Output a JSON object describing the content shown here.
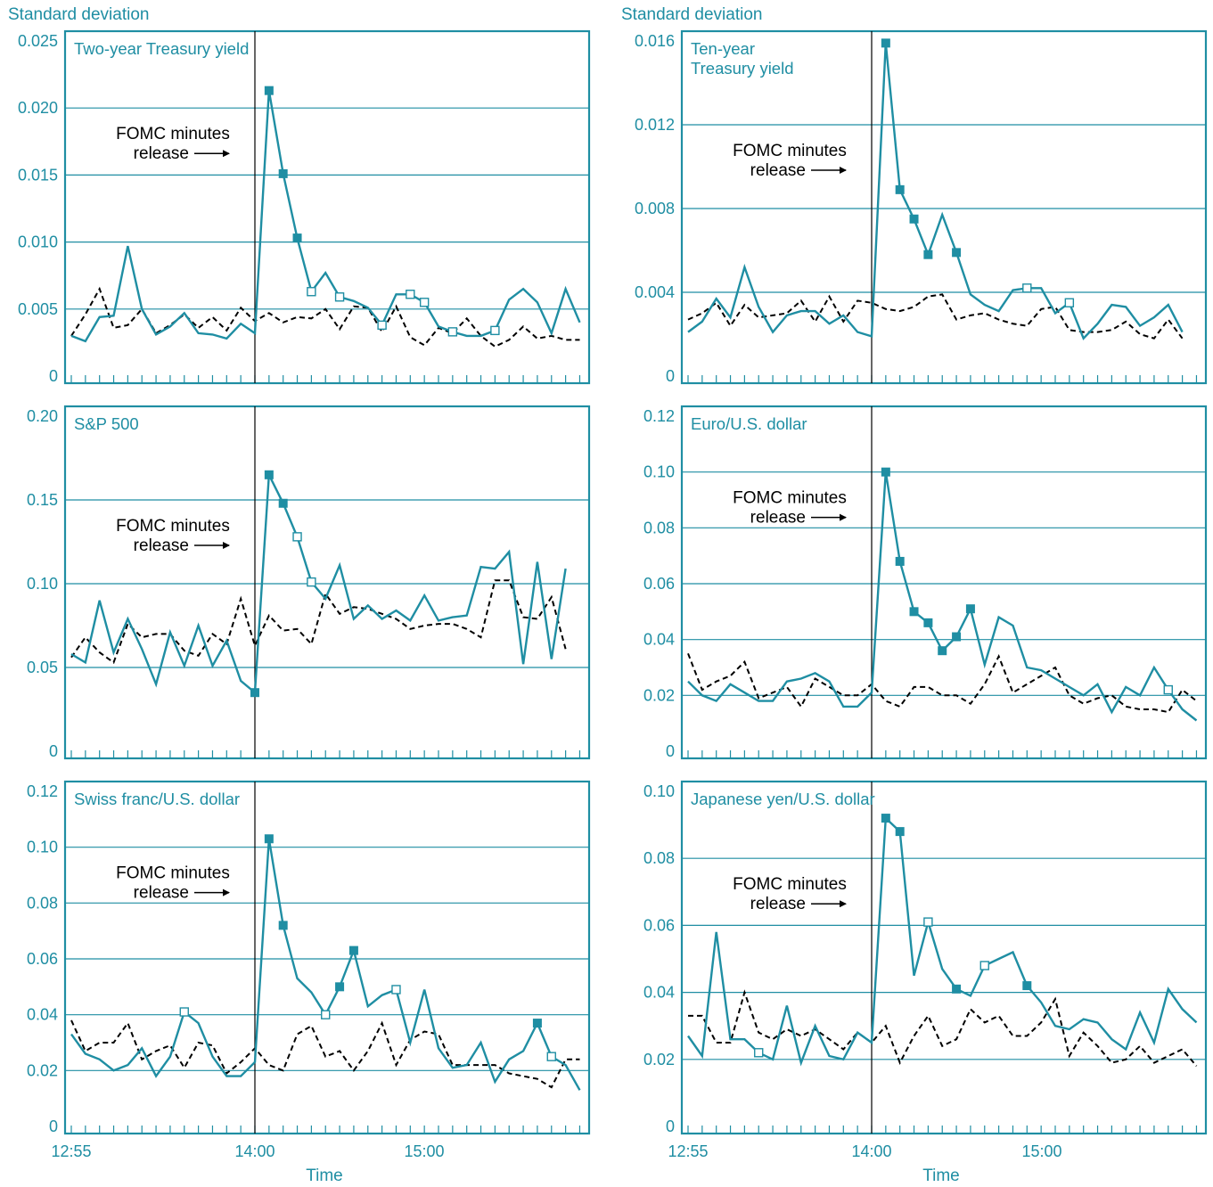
{
  "y_axis_caption": "Standard deviation",
  "x_axis_label": "Time",
  "colors": {
    "accent": "#1f8ea3",
    "frame": "#1f8ea3",
    "grid": "#1f8ea3",
    "comparison": "#000000",
    "event_line": "#000000"
  },
  "chart_data": [
    {
      "type": "line",
      "title_lines": [
        "Two-year Treasury yield"
      ],
      "annotation_lines": [
        "FOMC minutes",
        "release"
      ],
      "ylim": [
        0,
        0.025
      ],
      "y_ticks": [
        0,
        0.005,
        0.01,
        0.015,
        0.02,
        0.025
      ],
      "y_tick_labels": [
        "0",
        "0.005",
        "0.010",
        "0.015",
        "0.020",
        "0.025"
      ],
      "x_tick_labels": [
        "12:55",
        "14:00",
        "15:00"
      ],
      "grid": true,
      "event_index": 13,
      "series": [
        {
          "style": "solid",
          "values": [
            0.003,
            0.0026,
            0.0044,
            0.0045,
            0.0097,
            0.005,
            0.0031,
            0.0037,
            0.0047,
            0.0032,
            0.0031,
            0.0028,
            0.0039,
            0.0032,
            0.0213,
            0.0151,
            0.0103,
            0.0063,
            0.0077,
            0.0059,
            0.0056,
            0.0051,
            0.0038,
            0.0061,
            0.0061,
            0.0055,
            0.0037,
            0.0033,
            0.003,
            0.003,
            0.0034,
            0.0057,
            0.0065,
            0.0055,
            0.0032,
            0.0065,
            0.004
          ],
          "filled_markers": [
            14,
            15,
            16
          ],
          "open_markers": [
            17,
            19,
            22,
            24,
            25,
            27,
            30
          ]
        },
        {
          "style": "dashed",
          "values": [
            0.003,
            0.0046,
            0.0065,
            0.0036,
            0.0038,
            0.005,
            0.0032,
            0.0038,
            0.0046,
            0.0036,
            0.0044,
            0.0034,
            0.0051,
            0.0041,
            0.0047,
            0.004,
            0.0044,
            0.0043,
            0.005,
            0.0035,
            0.0052,
            0.0051,
            0.0033,
            0.0052,
            0.0029,
            0.0023,
            0.0036,
            0.0032,
            0.0043,
            0.003,
            0.0022,
            0.0027,
            0.0037,
            0.0028,
            0.003,
            0.0027,
            0.0027
          ]
        }
      ]
    },
    {
      "type": "line",
      "title_lines": [
        "Ten-year",
        "Treasury yield"
      ],
      "annotation_lines": [
        "FOMC minutes",
        "release"
      ],
      "ylim": [
        0,
        0.016
      ],
      "y_ticks": [
        0,
        0.004,
        0.008,
        0.012,
        0.016
      ],
      "y_tick_labels": [
        "0",
        "0.004",
        "0.008",
        "0.012",
        "0.016"
      ],
      "x_tick_labels": [
        "12:55",
        "14:00",
        "15:00"
      ],
      "grid": true,
      "event_index": 13,
      "series": [
        {
          "style": "solid",
          "values": [
            0.0021,
            0.0026,
            0.0037,
            0.0028,
            0.0052,
            0.0033,
            0.0021,
            0.0029,
            0.0031,
            0.0031,
            0.0025,
            0.0029,
            0.0021,
            0.0019,
            0.0159,
            0.0089,
            0.0075,
            0.0058,
            0.0077,
            0.0059,
            0.0039,
            0.0034,
            0.0031,
            0.0041,
            0.0042,
            0.0042,
            0.003,
            0.0035,
            0.0018,
            0.0025,
            0.0034,
            0.0033,
            0.0024,
            0.0028,
            0.0034,
            0.0021
          ],
          "filled_markers": [
            14,
            15,
            16,
            17,
            19
          ],
          "open_markers": [
            24,
            27
          ]
        },
        {
          "style": "dashed",
          "values": [
            0.0027,
            0.003,
            0.0035,
            0.0024,
            0.0034,
            0.0028,
            0.0029,
            0.003,
            0.0036,
            0.0026,
            0.0038,
            0.0026,
            0.0036,
            0.0035,
            0.0032,
            0.0031,
            0.0033,
            0.0038,
            0.0039,
            0.0027,
            0.0029,
            0.003,
            0.0027,
            0.0025,
            0.0024,
            0.0032,
            0.0033,
            0.0022,
            0.0021,
            0.0021,
            0.0022,
            0.0026,
            0.002,
            0.0018,
            0.0027,
            0.0018
          ]
        }
      ]
    },
    {
      "type": "line",
      "title_lines": [
        "S&P 500"
      ],
      "annotation_lines": [
        "FOMC minutes",
        "release"
      ],
      "ylim": [
        0,
        0.2
      ],
      "y_ticks": [
        0,
        0.05,
        0.1,
        0.15,
        0.2
      ],
      "y_tick_labels": [
        "0",
        "0.05",
        "0.10",
        "0.15",
        "0.20"
      ],
      "x_tick_labels": [
        "12:55",
        "14:00",
        "15:00"
      ],
      "grid": true,
      "event_index": 13,
      "series": [
        {
          "style": "solid",
          "values": [
            0.058,
            0.053,
            0.09,
            0.059,
            0.079,
            0.061,
            0.04,
            0.071,
            0.051,
            0.075,
            0.051,
            0.066,
            0.042,
            0.035,
            0.165,
            0.148,
            0.128,
            0.101,
            0.091,
            0.111,
            0.079,
            0.087,
            0.079,
            0.084,
            0.078,
            0.093,
            0.078,
            0.08,
            0.081,
            0.11,
            0.109,
            0.119,
            0.052,
            0.113,
            0.055,
            0.109
          ],
          "filled_markers": [
            13,
            14,
            15
          ],
          "open_markers": [
            16,
            17
          ]
        },
        {
          "style": "dashed",
          "values": [
            0.056,
            0.068,
            0.059,
            0.053,
            0.076,
            0.068,
            0.07,
            0.07,
            0.06,
            0.057,
            0.07,
            0.064,
            0.091,
            0.063,
            0.081,
            0.072,
            0.073,
            0.064,
            0.094,
            0.082,
            0.086,
            0.085,
            0.082,
            0.079,
            0.073,
            0.075,
            0.076,
            0.076,
            0.073,
            0.068,
            0.102,
            0.102,
            0.08,
            0.079,
            0.092,
            0.061
          ]
        }
      ]
    },
    {
      "type": "line",
      "title_lines": [
        "Euro/U.S. dollar"
      ],
      "annotation_lines": [
        "FOMC minutes",
        "release"
      ],
      "ylim": [
        0,
        0.12
      ],
      "y_ticks": [
        0,
        0.02,
        0.04,
        0.06,
        0.08,
        0.1,
        0.12
      ],
      "y_tick_labels": [
        "0",
        "0.02",
        "0.04",
        "0.06",
        "0.08",
        "0.10",
        "0.12"
      ],
      "x_tick_labels": [
        "12:55",
        "14:00",
        "15:00"
      ],
      "grid": true,
      "event_index": 13,
      "series": [
        {
          "style": "solid",
          "values": [
            0.025,
            0.02,
            0.018,
            0.024,
            0.021,
            0.018,
            0.018,
            0.025,
            0.026,
            0.028,
            0.025,
            0.016,
            0.016,
            0.021,
            0.1,
            0.068,
            0.05,
            0.046,
            0.036,
            0.041,
            0.051,
            0.031,
            0.048,
            0.045,
            0.03,
            0.029,
            0.026,
            0.023,
            0.02,
            0.024,
            0.014,
            0.023,
            0.02,
            0.03,
            0.022,
            0.015,
            0.011
          ],
          "filled_markers": [
            14,
            15,
            16,
            17,
            18,
            19,
            20
          ],
          "open_markers": [
            34
          ]
        },
        {
          "style": "dashed",
          "values": [
            0.035,
            0.022,
            0.025,
            0.027,
            0.032,
            0.019,
            0.021,
            0.023,
            0.016,
            0.026,
            0.023,
            0.02,
            0.02,
            0.024,
            0.018,
            0.016,
            0.023,
            0.023,
            0.02,
            0.02,
            0.017,
            0.024,
            0.034,
            0.021,
            0.024,
            0.027,
            0.03,
            0.02,
            0.017,
            0.019,
            0.02,
            0.016,
            0.015,
            0.015,
            0.014,
            0.022,
            0.018
          ]
        }
      ]
    },
    {
      "type": "line",
      "title_lines": [
        "Swiss franc/U.S. dollar"
      ],
      "annotation_lines": [
        "FOMC minutes",
        "release"
      ],
      "ylim": [
        0,
        0.12
      ],
      "y_ticks": [
        0,
        0.02,
        0.04,
        0.06,
        0.08,
        0.1,
        0.12
      ],
      "y_tick_labels": [
        "0",
        "0.02",
        "0.04",
        "0.06",
        "0.08",
        "0.10",
        "0.12"
      ],
      "x_tick_labels": [
        "12:55",
        "14:00",
        "15:00"
      ],
      "grid": true,
      "event_index": 13,
      "series": [
        {
          "style": "solid",
          "values": [
            0.033,
            0.026,
            0.024,
            0.02,
            0.022,
            0.028,
            0.018,
            0.025,
            0.041,
            0.037,
            0.025,
            0.018,
            0.018,
            0.023,
            0.103,
            0.072,
            0.053,
            0.048,
            0.04,
            0.05,
            0.063,
            0.043,
            0.047,
            0.049,
            0.03,
            0.049,
            0.028,
            0.021,
            0.022,
            0.03,
            0.016,
            0.024,
            0.027,
            0.037,
            0.025,
            0.022,
            0.013
          ],
          "filled_markers": [
            14,
            15,
            19,
            20,
            33
          ],
          "open_markers": [
            8,
            18,
            23,
            34
          ]
        },
        {
          "style": "dashed",
          "values": [
            0.038,
            0.027,
            0.03,
            0.03,
            0.037,
            0.024,
            0.027,
            0.029,
            0.021,
            0.03,
            0.029,
            0.019,
            0.023,
            0.028,
            0.022,
            0.02,
            0.033,
            0.036,
            0.025,
            0.027,
            0.02,
            0.027,
            0.037,
            0.022,
            0.031,
            0.034,
            0.033,
            0.022,
            0.022,
            0.022,
            0.022,
            0.019,
            0.018,
            0.017,
            0.014,
            0.024,
            0.024
          ]
        }
      ]
    },
    {
      "type": "line",
      "title_lines": [
        "Japanese yen/U.S. dollar"
      ],
      "annotation_lines": [
        "FOMC minutes",
        "release"
      ],
      "ylim": [
        0,
        0.1
      ],
      "y_ticks": [
        0,
        0.02,
        0.04,
        0.06,
        0.08,
        0.1
      ],
      "y_tick_labels": [
        "0",
        "0.02",
        "0.04",
        "0.06",
        "0.08",
        "0.10"
      ],
      "x_tick_labels": [
        "12:55",
        "14:00",
        "15:00"
      ],
      "grid": true,
      "event_index": 13,
      "series": [
        {
          "style": "solid",
          "values": [
            0.027,
            0.021,
            0.058,
            0.026,
            0.026,
            0.022,
            0.02,
            0.036,
            0.019,
            0.03,
            0.021,
            0.02,
            0.028,
            0.025,
            0.092,
            0.088,
            0.045,
            0.061,
            0.047,
            0.041,
            0.039,
            0.048,
            0.05,
            0.052,
            0.042,
            0.037,
            0.03,
            0.029,
            0.032,
            0.031,
            0.026,
            0.023,
            0.034,
            0.025,
            0.041,
            0.035,
            0.031
          ],
          "filled_markers": [
            14,
            15,
            19,
            24
          ],
          "open_markers": [
            5,
            17,
            21
          ]
        },
        {
          "style": "dashed",
          "values": [
            0.033,
            0.033,
            0.025,
            0.025,
            0.04,
            0.028,
            0.026,
            0.029,
            0.027,
            0.029,
            0.026,
            0.023,
            0.028,
            0.025,
            0.03,
            0.019,
            0.027,
            0.033,
            0.024,
            0.026,
            0.035,
            0.031,
            0.033,
            0.027,
            0.027,
            0.031,
            0.038,
            0.021,
            0.028,
            0.024,
            0.019,
            0.02,
            0.024,
            0.019,
            0.021,
            0.023,
            0.018
          ]
        }
      ]
    }
  ]
}
